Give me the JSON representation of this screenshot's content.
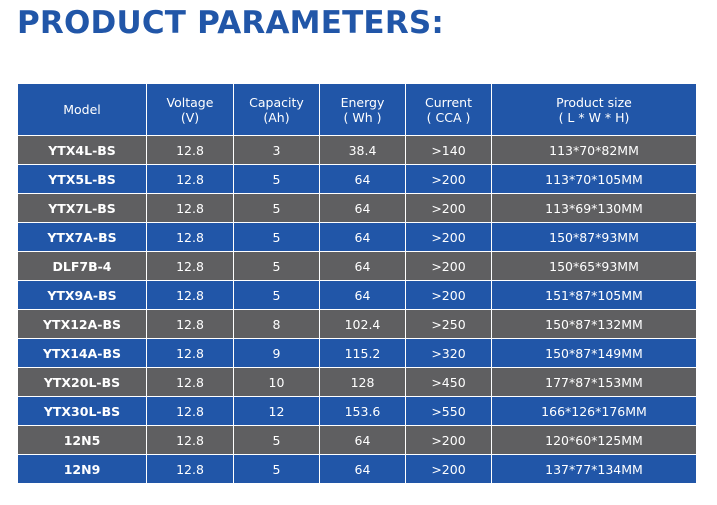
{
  "title": "PRODUCT PARAMETERS:",
  "colors": {
    "title": "#2156a8",
    "header_bg": "#2156a8",
    "row_blue": "#2156a8",
    "row_grey": "#5f5f61",
    "text": "#ffffff"
  },
  "table": {
    "headers": [
      {
        "line1": "Model",
        "line2": ""
      },
      {
        "line1": "Voltage",
        "line2": "(V)"
      },
      {
        "line1": "Capacity",
        "line2": "(Ah)"
      },
      {
        "line1": "Energy",
        "line2": "( Wh )"
      },
      {
        "line1": "Current",
        "line2": "( CCA )"
      },
      {
        "line1": "Product size",
        "line2": "( L * W * H)"
      }
    ],
    "rows": [
      {
        "model": "YTX4L-BS",
        "voltage": "12.8",
        "capacity": "3",
        "energy": "38.4",
        "current": ">140",
        "size": "113*70*82MM",
        "shade": "grey"
      },
      {
        "model": "YTX5L-BS",
        "voltage": "12.8",
        "capacity": "5",
        "energy": "64",
        "current": ">200",
        "size": "113*70*105MM",
        "shade": "blue"
      },
      {
        "model": "YTX7L-BS",
        "voltage": "12.8",
        "capacity": "5",
        "energy": "64",
        "current": ">200",
        "size": "113*69*130MM",
        "shade": "grey"
      },
      {
        "model": "YTX7A-BS",
        "voltage": "12.8",
        "capacity": "5",
        "energy": "64",
        "current": ">200",
        "size": "150*87*93MM",
        "shade": "blue"
      },
      {
        "model": "DLF7B-4",
        "voltage": "12.8",
        "capacity": "5",
        "energy": "64",
        "current": ">200",
        "size": "150*65*93MM",
        "shade": "grey"
      },
      {
        "model": "YTX9A-BS",
        "voltage": "12.8",
        "capacity": "5",
        "energy": "64",
        "current": ">200",
        "size": "151*87*105MM",
        "shade": "blue"
      },
      {
        "model": "YTX12A-BS",
        "voltage": "12.8",
        "capacity": "8",
        "energy": "102.4",
        "current": ">250",
        "size": "150*87*132MM",
        "shade": "grey"
      },
      {
        "model": "YTX14A-BS",
        "voltage": "12.8",
        "capacity": "9",
        "energy": "115.2",
        "current": ">320",
        "size": "150*87*149MM",
        "shade": "blue"
      },
      {
        "model": "YTX20L-BS",
        "voltage": "12.8",
        "capacity": "10",
        "energy": "128",
        "current": ">450",
        "size": "177*87*153MM",
        "shade": "grey"
      },
      {
        "model": "YTX30L-BS",
        "voltage": "12.8",
        "capacity": "12",
        "energy": "153.6",
        "current": ">550",
        "size": "166*126*176MM",
        "shade": "blue"
      },
      {
        "model": "12N5",
        "voltage": "12.8",
        "capacity": "5",
        "energy": "64",
        "current": ">200",
        "size": "120*60*125MM",
        "shade": "grey"
      },
      {
        "model": "12N9",
        "voltage": "12.8",
        "capacity": "5",
        "energy": "64",
        "current": ">200",
        "size": "137*77*134MM",
        "shade": "blue"
      }
    ]
  }
}
